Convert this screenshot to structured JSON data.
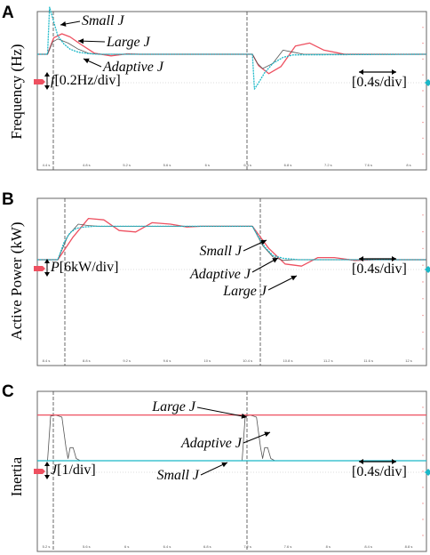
{
  "colors": {
    "large": "#ee5060",
    "small": "#1ab8c8",
    "adaptive": "#555555",
    "frame": "#666666"
  },
  "panels": [
    {
      "letter": "A",
      "ylabel": "Frequency (Hz)",
      "scale_sym": "f",
      "scale_unit": "[0.2Hz/div]",
      "time_scale": "[0.4s/div]",
      "annotations": {
        "small": "Small J",
        "large": "Large J",
        "adaptive": "Adaptive J"
      },
      "ticks": [
        "4.4 s",
        "4.8 s",
        "5.2 s",
        "5.6 s",
        "6 s",
        "6.4 s",
        "6.8 s",
        "7.2 s",
        "7.6 s",
        "8 s"
      ]
    },
    {
      "letter": "B",
      "ylabel": "Active Power (kW)",
      "scale_sym": "P",
      "scale_unit": "[6kW/div]",
      "time_scale": "[0.4s/div]",
      "annotations": {
        "small": "Small J",
        "adaptive": "Adaptive J",
        "large": "Large J"
      },
      "ticks": [
        "8.4 s",
        "8.8 s",
        "9.2 s",
        "9.6 s",
        "10 s",
        "10.4 s",
        "10.8 s",
        "11.2 s",
        "11.6 s",
        "12 s"
      ]
    },
    {
      "letter": "C",
      "ylabel": "Inertia",
      "scale_sym": "J",
      "scale_unit": "[1/div]",
      "time_scale": "[0.4s/div]",
      "annotations": {
        "large": "Large J",
        "adaptive": "Adaptive J",
        "small": "Small J"
      },
      "ticks": [
        "5.2 s",
        "5.6 s",
        "6 s",
        "6.4 s",
        "6.8 s",
        "7.2 s",
        "7.6 s",
        "8 s",
        "8.4 s",
        "8.8 s"
      ]
    }
  ],
  "chart_data": [
    {
      "type": "line",
      "title": "",
      "ylabel": "Frequency (Hz)",
      "y_scale": "0.2Hz/div",
      "x_scale": "0.4s/div",
      "x_ticks": [
        "4.4 s",
        "4.8 s",
        "5.2 s",
        "5.6 s",
        "6 s",
        "6.4 s",
        "6.8 s",
        "7.2 s",
        "7.6 s",
        "8 s"
      ],
      "x_unit": "s",
      "y_unit": "div",
      "events": [
        4.5,
        6.5
      ],
      "series": [
        {
          "name": "Small J",
          "x": [
            4.4,
            4.5,
            4.52,
            4.56,
            4.6,
            4.66,
            4.72,
            4.8,
            4.9,
            5.0,
            6.5,
            6.52,
            6.56,
            6.62,
            6.7,
            6.8,
            6.9,
            8.2
          ],
          "y": [
            0,
            0,
            2.3,
            1.6,
            0.9,
            0.5,
            0.25,
            0.1,
            0.03,
            0,
            0,
            -1.7,
            -1.4,
            -0.9,
            -0.45,
            -0.15,
            -0.03,
            0
          ]
        },
        {
          "name": "Large J",
          "x": [
            4.4,
            4.5,
            4.56,
            4.64,
            4.72,
            4.82,
            4.96,
            5.12,
            5.28,
            5.4,
            6.5,
            6.56,
            6.66,
            6.78,
            6.92,
            7.06,
            7.2,
            7.4,
            8.2
          ],
          "y": [
            0,
            0,
            0.8,
            1.0,
            0.85,
            0.5,
            0.05,
            -0.08,
            0.02,
            0,
            0,
            -0.55,
            -0.95,
            -0.6,
            0.4,
            0.55,
            0.2,
            0,
            0
          ]
        },
        {
          "name": "Adaptive J",
          "x": [
            4.4,
            4.5,
            4.55,
            4.6,
            4.7,
            4.8,
            4.9,
            5.0,
            6.5,
            6.55,
            6.6,
            6.7,
            6.8,
            6.9,
            7.0,
            8.2
          ],
          "y": [
            0,
            0,
            0.6,
            0.75,
            0.55,
            0.25,
            0.05,
            0,
            0,
            -0.45,
            -0.7,
            -0.45,
            0.2,
            0.1,
            0,
            0
          ]
        }
      ]
    },
    {
      "type": "line",
      "title": "",
      "ylabel": "Active Power (kW)",
      "y_scale": "6kW/div",
      "x_scale": "0.4s/div",
      "x_ticks": [
        "8.4 s",
        "8.8 s",
        "9.2 s",
        "9.6 s",
        "10 s",
        "10.4 s",
        "10.8 s",
        "11.2 s",
        "11.6 s",
        "12 s"
      ],
      "x_unit": "s",
      "y_unit": "div",
      "events": [
        8.6,
        10.5
      ],
      "series": [
        {
          "name": "Small J",
          "x": [
            8.4,
            8.6,
            8.66,
            8.72,
            8.78,
            8.86,
            8.96,
            9.1,
            10.5,
            10.56,
            10.62,
            10.7,
            10.8,
            10.95,
            12.2
          ],
          "y": [
            0,
            0,
            1.2,
            1.9,
            2.2,
            2.3,
            2.35,
            2.35,
            2.35,
            1.6,
            0.9,
            0.3,
            0.1,
            0,
            0
          ]
        },
        {
          "name": "Adaptive J",
          "x": [
            8.4,
            8.6,
            8.7,
            8.8,
            8.9,
            9.0,
            9.2,
            10.5,
            10.6,
            10.7,
            10.8,
            10.9,
            11.0,
            12.2
          ],
          "y": [
            0,
            0,
            1.7,
            2.5,
            2.4,
            2.35,
            2.35,
            2.35,
            1.0,
            0.2,
            -0.05,
            0,
            0,
            0
          ]
        },
        {
          "name": "Large J",
          "x": [
            8.4,
            8.6,
            8.75,
            8.9,
            9.05,
            9.2,
            9.36,
            9.52,
            9.7,
            9.86,
            10.0,
            10.5,
            10.66,
            10.82,
            10.98,
            11.14,
            11.3,
            11.5,
            11.7,
            12.2
          ],
          "y": [
            0,
            0,
            1.6,
            2.9,
            2.8,
            2.05,
            1.95,
            2.6,
            2.5,
            2.3,
            2.35,
            2.35,
            0.8,
            -0.3,
            -0.45,
            0.15,
            0.15,
            -0.05,
            0,
            0
          ]
        }
      ]
    },
    {
      "type": "line",
      "title": "",
      "ylabel": "Inertia",
      "y_scale": "1/div",
      "x_scale": "0.4s/div",
      "x_ticks": [
        "5.2 s",
        "5.6 s",
        "6 s",
        "6.4 s",
        "6.8 s",
        "7.2 s",
        "7.6 s",
        "8 s",
        "8.4 s",
        "8.8 s"
      ],
      "x_unit": "s",
      "y_unit": "div",
      "events": [
        5.3,
        7.2
      ],
      "series": [
        {
          "name": "Large J",
          "x": [
            5.2,
            9.0
          ],
          "y": [
            2.1,
            2.1
          ]
        },
        {
          "name": "Small J",
          "x": [
            5.2,
            9.0
          ],
          "y": [
            0,
            0
          ]
        },
        {
          "name": "Adaptive J",
          "x": [
            5.2,
            5.3,
            5.33,
            5.38,
            5.44,
            5.48,
            5.5,
            5.52,
            5.55,
            5.58,
            5.62,
            5.65,
            7.2,
            7.23,
            7.28,
            7.34,
            7.38,
            7.4,
            7.42,
            7.45,
            7.48,
            7.52,
            7.55,
            9.0
          ],
          "y": [
            0,
            0,
            2.05,
            2.1,
            2.0,
            0.6,
            0.1,
            0.6,
            0.6,
            0.1,
            0,
            0,
            0,
            2.05,
            2.1,
            2.0,
            0.6,
            0.1,
            0.6,
            0.6,
            0.1,
            0,
            0,
            0
          ]
        }
      ]
    }
  ]
}
